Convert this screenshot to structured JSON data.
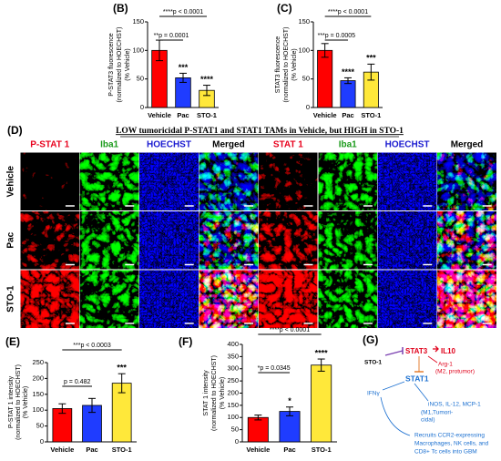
{
  "chart_data": [
    {
      "type": "bar",
      "panel": "(B)",
      "ylabel": [
        "P-STAT3 fluorescence",
        "(normalized to HOECHST)",
        "(% Vehicle)"
      ],
      "categories": [
        "Vehicle",
        "Pac",
        "STO-1"
      ],
      "values": [
        100,
        52,
        30
      ],
      "errors": [
        18,
        8,
        9
      ],
      "colors": [
        "#ff0000",
        "#1f3cff",
        "#ffe83a"
      ],
      "ylim": [
        0,
        150
      ],
      "yticks": [
        0,
        50,
        100,
        150
      ],
      "bar_labels": [
        null,
        "***",
        "****"
      ],
      "comparisons": [
        "****p < 0.0001",
        "**p = 0.0001"
      ]
    },
    {
      "type": "bar",
      "panel": "(C)",
      "ylabel": [
        "STAT3 fluorescence",
        "(normalized to HOECHST)",
        "(% Vehicle)"
      ],
      "categories": [
        "Vehicle",
        "Pac",
        "STO-1"
      ],
      "values": [
        100,
        47,
        62
      ],
      "errors": [
        12,
        5,
        14
      ],
      "colors": [
        "#ff0000",
        "#1f3cff",
        "#ffe83a"
      ],
      "ylim": [
        0,
        150
      ],
      "yticks": [
        0,
        50,
        100,
        150
      ],
      "bar_labels": [
        null,
        "****",
        "***"
      ],
      "comparisons": [
        "****p < 0.0001",
        "***p = 0.0005"
      ]
    },
    {
      "type": "bar",
      "panel": "(E)",
      "ylabel": [
        "P-STAT 1 intensity",
        "(normalized to HOECHST)",
        "(% Vehicle)"
      ],
      "categories": [
        "Vehicle",
        "Pac",
        "STO-1"
      ],
      "values": [
        105,
        115,
        185
      ],
      "errors": [
        15,
        22,
        30
      ],
      "colors": [
        "#ff0000",
        "#1f3cff",
        "#ffe83a"
      ],
      "ylim": [
        0,
        250
      ],
      "yticks": [
        0,
        50,
        100,
        150,
        200,
        250
      ],
      "bar_labels": [
        null,
        null,
        "***"
      ],
      "comparisons": [
        "***p < 0.0003",
        "p = 0.482"
      ]
    },
    {
      "type": "bar",
      "panel": "(F)",
      "ylabel": [
        "STAT 1 intensity",
        "(normalized to HOECHST)",
        "(% Vehicle)"
      ],
      "categories": [
        "Vehicle",
        "Pac",
        "STO-1"
      ],
      "values": [
        100,
        125,
        315
      ],
      "errors": [
        10,
        18,
        25
      ],
      "colors": [
        "#ff0000",
        "#1f3cff",
        "#ffe83a"
      ],
      "ylim": [
        0,
        400
      ],
      "yticks": [
        0,
        50,
        100,
        150,
        200,
        250,
        300,
        350,
        400
      ],
      "bar_labels": [
        null,
        "*",
        "****"
      ],
      "comparisons": [
        "****p < 0.0001",
        "*p = 0.0345"
      ]
    }
  ],
  "panel_d": {
    "panel": "(D)",
    "title": "LOW tumoricidal P-STAT1 and STAT1 TAMs in Vehicle, but HIGH in STO-1",
    "columns": [
      "P-STAT 1",
      "Iba1",
      "HOECHST",
      "Merged",
      "STAT 1",
      "Iba1",
      "HOECHST",
      "Merged"
    ],
    "rows": [
      "Vehicle",
      "Pac",
      "STO-1"
    ]
  },
  "panel_g": {
    "panel": "(G)",
    "drug": "STO-1",
    "stat3": "STAT3",
    "il10": "IL10",
    "arg1": "Arg-1",
    "m2": "(M2, protumor)",
    "stat1": "STAT1",
    "ifng": "IFNγ",
    "m1_genes": "iNOS, IL-12, MCP-1",
    "m1_a": "(M1,Tumori-",
    "m1_b": "cidal)",
    "recruit": [
      "Recruits CCR2-expressing",
      "Macrophages, NK cells, and",
      "CD8+ Tc cells into GBM"
    ]
  }
}
